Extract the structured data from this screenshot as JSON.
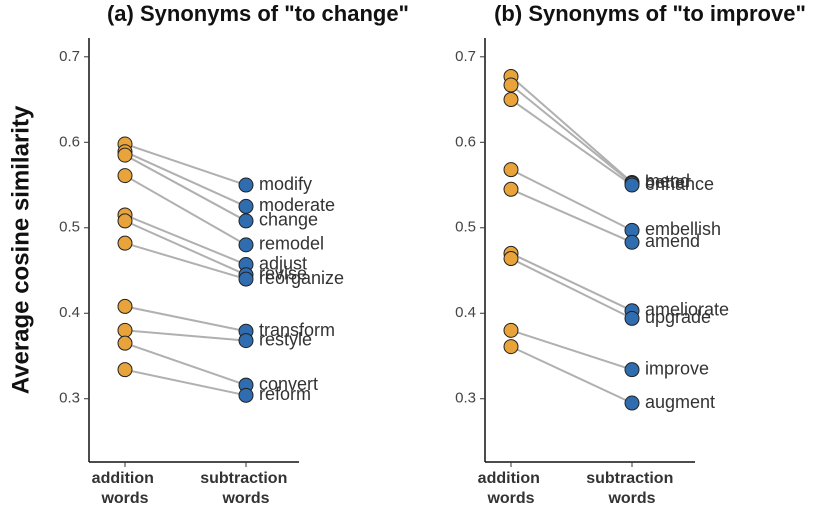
{
  "chart_data": [
    {
      "type": "slope",
      "title": "(a) Synonyms of \"to change\"",
      "ylabel": "Average cosine similarity",
      "ylim": [
        0.226,
        0.722
      ],
      "yticks": [
        0.3,
        0.4,
        0.5,
        0.6,
        0.7
      ],
      "words": [
        "modify",
        "moderate",
        "change",
        "remodel",
        "adjust",
        "revise",
        "reorganize",
        "transform",
        "restyle",
        "convert",
        "reform"
      ],
      "series": [
        {
          "name": "addition words",
          "color": "#e8a33a",
          "values": [
            0.598,
            0.589,
            0.585,
            0.561,
            0.515,
            0.508,
            0.482,
            0.408,
            0.38,
            0.365,
            0.334
          ]
        },
        {
          "name": "subtraction words",
          "color": "#2f6db0",
          "values": [
            0.55,
            0.525,
            0.508,
            0.48,
            0.457,
            0.445,
            0.44,
            0.379,
            0.368,
            0.316,
            0.304
          ]
        }
      ]
    },
    {
      "type": "slope",
      "title": "(b) Synonyms of \"to improve\"",
      "ylim": [
        0.226,
        0.722
      ],
      "yticks": [
        0.3,
        0.4,
        0.5,
        0.6,
        0.7
      ],
      "words": [
        "mend",
        "better",
        "enhance",
        "embellish",
        "amend",
        "ameliorate",
        "upgrade",
        "improve",
        "augment"
      ],
      "series": [
        {
          "name": "addition words",
          "color": "#e8a33a",
          "values": [
            0.677,
            0.667,
            0.65,
            0.568,
            0.545,
            0.47,
            0.464,
            0.38,
            0.361
          ]
        },
        {
          "name": "subtraction words",
          "color": "#2f6db0",
          "values": [
            0.553,
            0.552,
            0.55,
            0.497,
            0.483,
            0.403,
            0.394,
            0.334,
            0.295
          ]
        }
      ]
    }
  ]
}
